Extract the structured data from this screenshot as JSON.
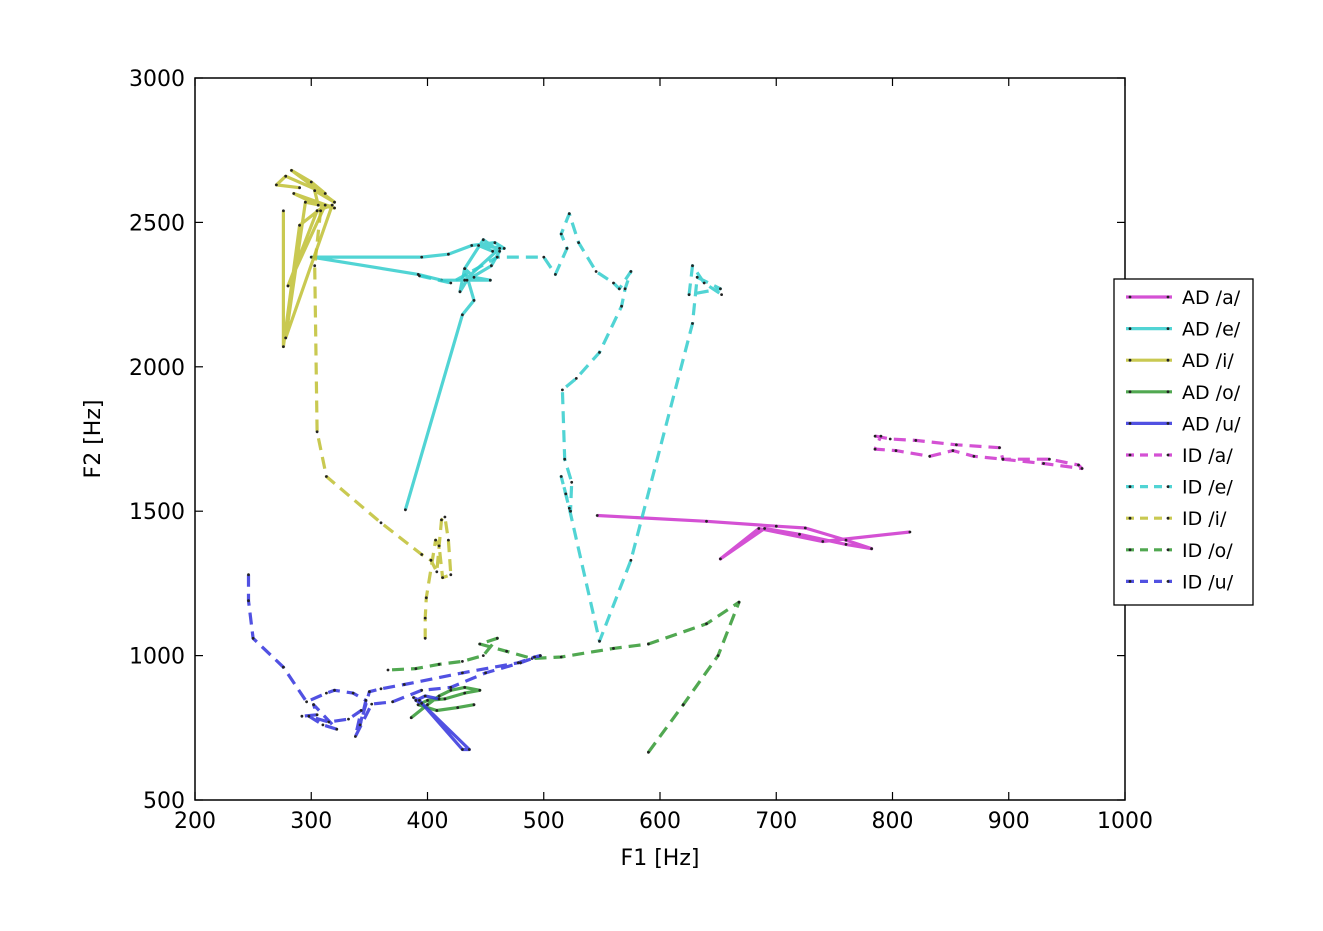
{
  "chart_data": {
    "type": "line",
    "title": "",
    "xlabel": "F1 [Hz]",
    "ylabel": "F2 [Hz]",
    "xlim": [
      200,
      1000
    ],
    "ylim": [
      500,
      3000
    ],
    "xticks": [
      200,
      300,
      400,
      500,
      600,
      700,
      800,
      900,
      1000
    ],
    "yticks": [
      500,
      1000,
      1500,
      2000,
      2500,
      3000
    ],
    "grid": false,
    "legend_position": "right",
    "series": [
      {
        "name": "AD /a/",
        "color": "#cc33cc",
        "dash": "solid",
        "x": [
          546,
          640,
          700,
          725,
          760,
          782,
          760,
          720,
          690,
          652,
          685,
          740,
          815
        ],
        "y": [
          1485,
          1465,
          1448,
          1442,
          1400,
          1370,
          1385,
          1420,
          1440,
          1335,
          1440,
          1395,
          1428
        ]
      },
      {
        "name": "AD /e/",
        "color": "#33cccc",
        "dash": "solid",
        "x": [
          381,
          430,
          440,
          432,
          428,
          434,
          455,
          462,
          448,
          432,
          440,
          454,
          412,
          392,
          300,
          395,
          418,
          438,
          458,
          466,
          444,
          456,
          462,
          432
        ],
        "y": [
          1505,
          2180,
          2230,
          2340,
          2260,
          2300,
          2350,
          2400,
          2440,
          2340,
          2310,
          2300,
          2300,
          2320,
          2380,
          2380,
          2390,
          2420,
          2430,
          2410,
          2420,
          2400,
          2410,
          2300
        ]
      },
      {
        "name": "AD /i/",
        "color": "#bfbf33",
        "dash": "solid",
        "x": [
          276,
          276,
          290,
          312,
          280,
          305,
          318,
          278,
          295,
          320,
          285,
          306,
          303,
          320,
          283,
          300,
          312,
          278,
          270,
          290
        ],
        "y": [
          2540,
          2070,
          2490,
          2560,
          2280,
          2540,
          2560,
          2100,
          2570,
          2550,
          2600,
          2560,
          2610,
          2570,
          2680,
          2640,
          2600,
          2660,
          2630,
          2620
        ]
      },
      {
        "name": "AD /o/",
        "color": "#339933",
        "dash": "solid",
        "x": [
          386,
          400,
          410,
          420,
          432,
          445,
          432,
          415,
          400,
          392,
          408,
          426,
          440
        ],
        "y": [
          785,
          830,
          860,
          880,
          890,
          880,
          870,
          850,
          845,
          830,
          810,
          820,
          830
        ]
      },
      {
        "name": "AD /u/",
        "color": "#3333dd",
        "dash": "solid",
        "x": [
          388,
          393,
          430,
          436,
          395,
          390,
          398,
          410
        ],
        "y": [
          855,
          845,
          675,
          675,
          835,
          845,
          860,
          850
        ]
      },
      {
        "name": "ID /a/",
        "color": "#cc33cc",
        "dash": "dashed",
        "x": [
          785,
          798,
          820,
          855,
          892,
          895,
          935,
          960,
          963,
          930,
          895,
          870,
          852,
          832,
          803,
          785,
          790
        ],
        "y": [
          1760,
          1750,
          1745,
          1730,
          1720,
          1680,
          1680,
          1660,
          1648,
          1665,
          1680,
          1690,
          1710,
          1690,
          1710,
          1715,
          1760
        ]
      },
      {
        "name": "ID /e/",
        "color": "#33cccc",
        "dash": "dashed",
        "x": [
          393,
          420,
          460,
          500,
          510,
          520,
          515,
          522,
          530,
          545,
          560,
          565,
          575,
          570,
          567,
          548,
          528,
          516,
          518,
          524,
          523,
          519,
          515,
          522,
          548,
          575,
          628,
          632,
          652,
          625,
          628,
          638,
          653
        ],
        "y": [
          2315,
          2290,
          2380,
          2380,
          2320,
          2410,
          2460,
          2530,
          2430,
          2330,
          2290,
          2270,
          2330,
          2270,
          2210,
          2050,
          1960,
          1920,
          1680,
          1600,
          1500,
          1560,
          1620,
          1510,
          1050,
          1330,
          2150,
          2310,
          2270,
          2250,
          2350,
          2290,
          2250
        ]
      },
      {
        "name": "ID /i/",
        "color": "#bfbf33",
        "dash": "dashed",
        "x": [
          308,
          303,
          305,
          313,
          360,
          395,
          403,
          408,
          412,
          415,
          418,
          420,
          413,
          410,
          407,
          399,
          398,
          398
        ],
        "y": [
          2540,
          2350,
          1775,
          1620,
          1460,
          1350,
          1330,
          1290,
          1470,
          1480,
          1400,
          1280,
          1270,
          1380,
          1400,
          1200,
          1130,
          1060
        ]
      },
      {
        "name": "ID /o/",
        "color": "#339933",
        "dash": "dashed",
        "x": [
          590,
          620,
          650,
          668,
          640,
          590,
          560,
          515,
          490,
          468,
          445,
          460,
          448,
          430,
          410,
          390,
          366
        ],
        "y": [
          665,
          830,
          1000,
          1185,
          1110,
          1040,
          1025,
          995,
          990,
          1015,
          1040,
          1060,
          1000,
          980,
          970,
          955,
          950
        ]
      },
      {
        "name": "ID /u/",
        "color": "#3333dd",
        "dash": "dashed",
        "x": [
          246,
          246,
          250,
          276,
          296,
          313,
          320,
          336,
          347,
          342,
          350,
          360,
          380,
          430,
          478,
          492,
          497,
          480,
          450,
          420,
          395,
          370,
          352,
          338,
          343,
          332,
          315,
          298,
          310,
          322,
          302,
          305,
          292
        ],
        "y": [
          1280,
          1190,
          1060,
          960,
          840,
          870,
          880,
          870,
          845,
          760,
          875,
          885,
          900,
          940,
          975,
          995,
          1000,
          975,
          940,
          890,
          880,
          840,
          832,
          720,
          810,
          780,
          770,
          790,
          760,
          745,
          830,
          795,
          790
        ]
      }
    ]
  }
}
